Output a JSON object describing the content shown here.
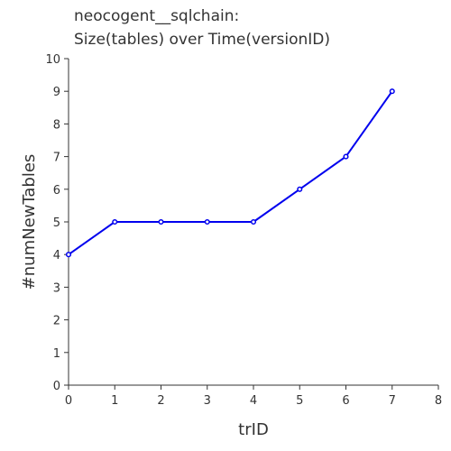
{
  "chart_data": {
    "type": "line",
    "title_lines": [
      "neocogent__sqlchain:",
      "Size(tables) over Time(versionID)"
    ],
    "xlabel": "trID",
    "ylabel": "#numNewTables",
    "xlim": [
      0,
      8
    ],
    "ylim": [
      0,
      10
    ],
    "x_ticks": [
      0,
      1,
      2,
      3,
      4,
      5,
      6,
      7,
      8
    ],
    "y_ticks": [
      0,
      1,
      2,
      3,
      4,
      5,
      6,
      7,
      8,
      9,
      10
    ],
    "grid": false,
    "series": [
      {
        "color": "#0000ee",
        "x": [
          0,
          1,
          2,
          3,
          4,
          5,
          6,
          7
        ],
        "y": [
          4,
          5,
          5,
          5,
          5,
          6,
          7,
          9
        ]
      }
    ]
  }
}
